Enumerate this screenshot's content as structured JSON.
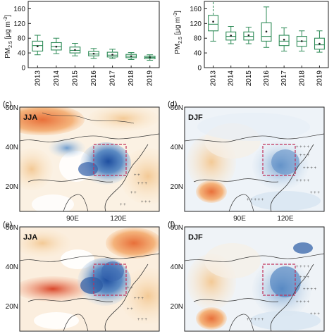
{
  "chart_data": [
    {
      "type": "box",
      "panel": "a",
      "categories": [
        "2013",
        "2014",
        "2015",
        "2016",
        "2017",
        "2018",
        "2019"
      ],
      "ylabel": "PM2.5 [μg m-3]",
      "ylabel_main": "PM",
      "ylabel_sub": "2.5",
      "ylabel_unit": "[μg m",
      "ylabel_exp": "-3",
      "ylabel_close": "]",
      "ylim": [
        0,
        180
      ],
      "yticks": [
        0,
        40,
        80,
        120,
        160
      ],
      "color": "#2e8b57",
      "boxes": [
        {
          "min": 35,
          "q1": 45,
          "median": 60,
          "q3": 72,
          "max": 88,
          "mean": 58
        },
        {
          "min": 38,
          "q1": 48,
          "median": 57,
          "q3": 68,
          "max": 80,
          "mean": 57
        },
        {
          "min": 32,
          "q1": 40,
          "median": 47,
          "q3": 56,
          "max": 66,
          "mean": 48
        },
        {
          "min": 25,
          "q1": 32,
          "median": 37,
          "q3": 44,
          "max": 52,
          "mean": 38
        },
        {
          "min": 25,
          "q1": 29,
          "median": 34,
          "q3": 42,
          "max": 50,
          "mean": 35
        },
        {
          "min": 22,
          "q1": 27,
          "median": 31,
          "q3": 36,
          "max": 41,
          "mean": 31
        },
        {
          "min": 20,
          "q1": 24,
          "median": 28,
          "q3": 31,
          "max": 35,
          "mean": 28
        }
      ]
    },
    {
      "type": "box",
      "panel": "b",
      "categories": [
        "2013",
        "2014",
        "2015",
        "2016",
        "2017",
        "2018",
        "2019"
      ],
      "ylabel": "PM2.5 [μg m-3]",
      "ylabel_main": "PM",
      "ylabel_sub": "2.5",
      "ylabel_unit": "[μg m",
      "ylabel_exp": "-3",
      "ylabel_close": "]",
      "ylim": [
        0,
        180
      ],
      "yticks": [
        0,
        40,
        80,
        120,
        160
      ],
      "color": "#2e8b57",
      "boxes": [
        {
          "min": 72,
          "q1": 100,
          "median": 118,
          "q3": 142,
          "max": 200,
          "mean": 125
        },
        {
          "min": 65,
          "q1": 75,
          "median": 85,
          "q3": 97,
          "max": 112,
          "mean": 87
        },
        {
          "min": 65,
          "q1": 75,
          "median": 85,
          "q3": 97,
          "max": 110,
          "mean": 88
        },
        {
          "min": 55,
          "q1": 72,
          "median": 85,
          "q3": 122,
          "max": 165,
          "mean": 98
        },
        {
          "min": 45,
          "q1": 60,
          "median": 72,
          "q3": 88,
          "max": 108,
          "mean": 76
        },
        {
          "min": 45,
          "q1": 58,
          "median": 72,
          "q3": 85,
          "max": 100,
          "mean": 72
        },
        {
          "min": 42,
          "q1": 50,
          "median": 62,
          "q3": 80,
          "max": 100,
          "mean": 65
        }
      ]
    },
    {
      "type": "heatmap",
      "panel": "c",
      "label": "(c)",
      "season": "JJA",
      "lat_ticks": [
        "60N",
        "40N",
        "20N"
      ],
      "lon_ticks": [
        "90E",
        "120E"
      ]
    },
    {
      "type": "heatmap",
      "panel": "d",
      "label": "(d)",
      "season": "DJF",
      "lat_ticks": [
        "60N",
        "40N",
        "20N"
      ],
      "lon_ticks": [
        "90E",
        "120E"
      ]
    },
    {
      "type": "heatmap",
      "panel": "e",
      "label": "(e)",
      "season": "JJA",
      "lat_ticks": [
        "60N",
        "40N",
        "20N"
      ],
      "lon_ticks": [
        "90E",
        "120E"
      ]
    },
    {
      "type": "heatmap",
      "panel": "f",
      "label": "(f)",
      "season": "DJF",
      "lat_ticks": [
        "60N",
        "40N",
        "20N"
      ],
      "lon_ticks": [
        "90E",
        "120E"
      ]
    }
  ],
  "colors": {
    "box": "#2e8b57",
    "box_dash": "#2e8b57",
    "frame": "#222222",
    "region_box": "#c0305a",
    "coast": "#333333"
  }
}
